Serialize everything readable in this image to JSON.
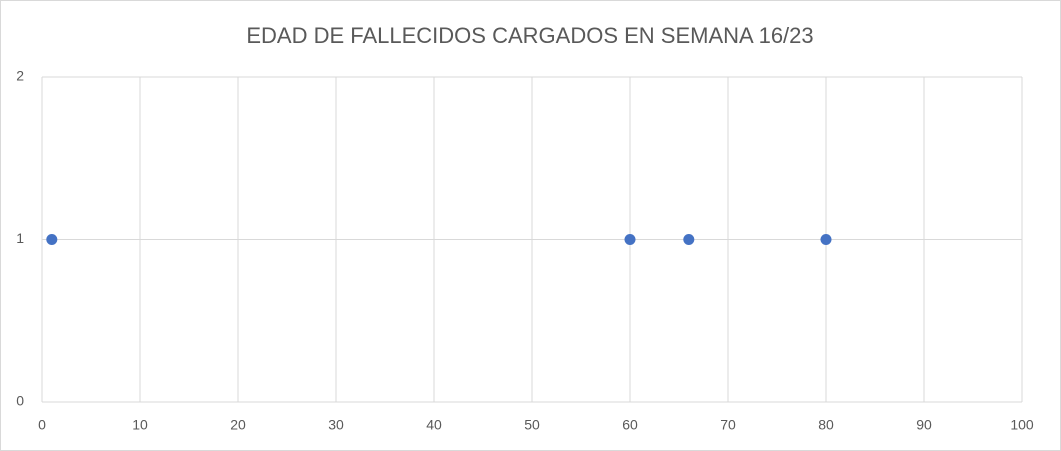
{
  "chart_data": {
    "type": "scatter",
    "title": "EDAD DE FALLECIDOS CARGADOS EN SEMANA 16/23",
    "series": [
      {
        "color": "#4472c4",
        "x": [
          1,
          60,
          66,
          80
        ],
        "values": [
          1,
          1,
          1,
          1
        ]
      }
    ],
    "xlim": [
      0,
      100
    ],
    "xticks": [
      0,
      10,
      20,
      30,
      40,
      50,
      60,
      70,
      80,
      90,
      100
    ],
    "ylim": [
      0,
      2
    ],
    "yticks": [
      0,
      1,
      2
    ],
    "grid": true
  }
}
